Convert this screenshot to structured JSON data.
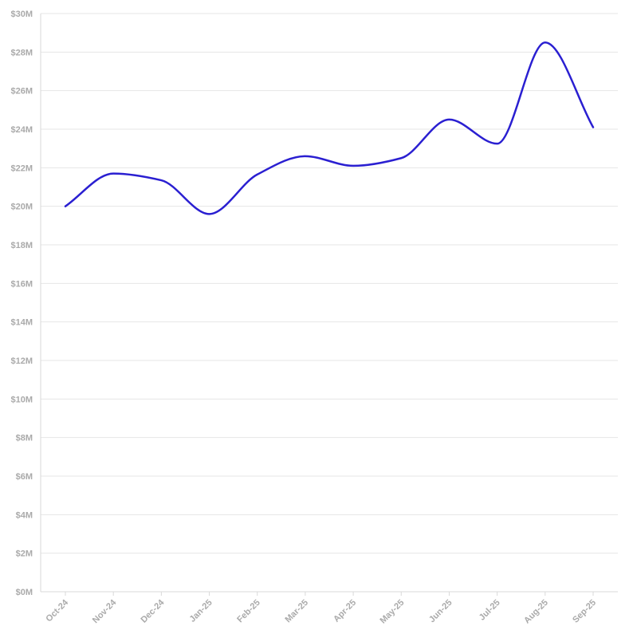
{
  "chart_data": {
    "type": "line",
    "title": "",
    "xlabel": "",
    "ylabel": "",
    "categories": [
      "Oct-24",
      "Nov-24",
      "Dec-24",
      "Jan-25",
      "Feb-25",
      "Mar-25",
      "Apr-25",
      "May-25",
      "Jun-25",
      "Jul-25",
      "Aug-25",
      "Sep-25"
    ],
    "series": [
      {
        "values": [
          20.0,
          21.7,
          21.35,
          19.6,
          21.65,
          22.6,
          22.1,
          22.5,
          24.5,
          23.25,
          28.5,
          24.1
        ],
        "color": "#2a1fd1"
      }
    ],
    "yticks": [
      "$0M",
      "$2M",
      "$4M",
      "$6M",
      "$8M",
      "$10M",
      "$12M",
      "$14M",
      "$16M",
      "$18M",
      "$20M",
      "$22M",
      "$24M",
      "$26M",
      "$28M",
      "$30M"
    ],
    "ylim": [
      0,
      30
    ],
    "grid": true,
    "legend": "none"
  }
}
